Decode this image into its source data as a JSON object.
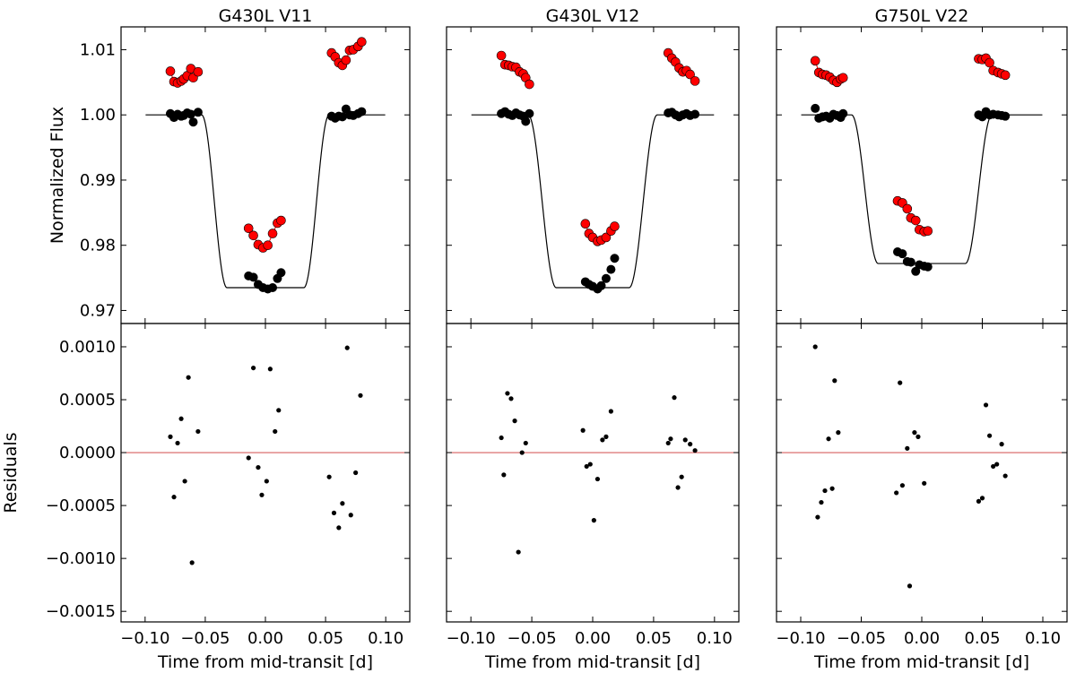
{
  "figure": {
    "shared_x_label": "Time from mid-transit [d]",
    "top_y_label": "Normalized Flux",
    "bottom_y_label": "Residuals"
  },
  "colors": {
    "raw": "#ff0000",
    "corrected": "#000000",
    "model": "#000000",
    "zero_line": "#cc3333"
  },
  "chart_data": [
    {
      "type": "scatter",
      "title": "G430L V11",
      "xlabel": "Time from mid-transit [d]",
      "ylabel_flux": "Normalized Flux",
      "ylabel_resid": "Residuals",
      "xlim": [
        -0.12,
        0.12
      ],
      "xticks": [
        "−0.10",
        "−0.05",
        "0.00",
        "0.05",
        "0.10"
      ],
      "ylim_flux": [
        0.968,
        1.0135
      ],
      "yticks_flux": [
        "0.97",
        "0.98",
        "0.99",
        "1.00",
        "1.01"
      ],
      "ylim_resid": [
        -0.0016,
        0.00122
      ],
      "yticks_resid": [
        "−0.0015",
        "−0.0010",
        "−0.0005",
        "0.0000",
        "0.0005",
        "0.0010"
      ],
      "model": {
        "t1": -0.053,
        "t2": -0.032,
        "t3": 0.032,
        "t4": 0.053,
        "depth": 0.0265
      },
      "raw": [
        [
          -0.079,
          1.0067
        ],
        [
          -0.076,
          1.0051
        ],
        [
          -0.073,
          1.0049
        ],
        [
          -0.07,
          1.0052
        ],
        [
          -0.068,
          1.0055
        ],
        [
          -0.065,
          1.006
        ],
        [
          -0.062,
          1.0071
        ],
        [
          -0.06,
          1.0057
        ],
        [
          -0.056,
          1.0066
        ],
        [
          -0.014,
          0.9826
        ],
        [
          -0.01,
          0.9815
        ],
        [
          -0.006,
          0.9801
        ],
        [
          -0.002,
          0.9796
        ],
        [
          0.002,
          0.98
        ],
        [
          0.006,
          0.9818
        ],
        [
          0.01,
          0.9834
        ],
        [
          0.013,
          0.9838
        ],
        [
          0.055,
          1.0095
        ],
        [
          0.058,
          1.0089
        ],
        [
          0.061,
          1.008
        ],
        [
          0.064,
          1.0076
        ],
        [
          0.067,
          1.0084
        ],
        [
          0.07,
          1.0099
        ],
        [
          0.073,
          1.01
        ],
        [
          0.077,
          1.0105
        ],
        [
          0.08,
          1.0112
        ]
      ],
      "corrected": [
        [
          -0.079,
          1.0002
        ],
        [
          -0.076,
          0.9996
        ],
        [
          -0.073,
          1.0001
        ],
        [
          -0.07,
          0.9998
        ],
        [
          -0.068,
          0.9999
        ],
        [
          -0.065,
          1.0003
        ],
        [
          -0.062,
          1.0001
        ],
        [
          -0.06,
          0.9989
        ],
        [
          -0.056,
          1.0004
        ],
        [
          -0.014,
          0.9753
        ],
        [
          -0.01,
          0.9751
        ],
        [
          -0.006,
          0.974
        ],
        [
          -0.002,
          0.9735
        ],
        [
          0.002,
          0.9733
        ],
        [
          0.006,
          0.9735
        ],
        [
          0.01,
          0.9749
        ],
        [
          0.013,
          0.9758
        ],
        [
          0.055,
          0.9998
        ],
        [
          0.058,
          0.9995
        ],
        [
          0.061,
          0.9998
        ],
        [
          0.064,
          0.9997
        ],
        [
          0.067,
          1.0009
        ],
        [
          0.07,
          1.0
        ],
        [
          0.073,
          0.9999
        ],
        [
          0.077,
          1.0002
        ],
        [
          0.08,
          1.0005
        ]
      ],
      "residuals": [
        [
          -0.079,
          0.00015
        ],
        [
          -0.076,
          -0.00042
        ],
        [
          -0.073,
          9e-05
        ],
        [
          -0.07,
          0.00032
        ],
        [
          -0.067,
          -0.00027
        ],
        [
          -0.064,
          0.00071
        ],
        [
          -0.061,
          -0.00104
        ],
        [
          -0.056,
          0.0002
        ],
        [
          -0.014,
          -5e-05
        ],
        [
          -0.01,
          0.0008
        ],
        [
          -0.006,
          -0.00014
        ],
        [
          -0.003,
          -0.0004
        ],
        [
          0.001,
          -0.00027
        ],
        [
          0.004,
          0.00079
        ],
        [
          0.008,
          0.0002
        ],
        [
          0.011,
          0.0004
        ],
        [
          0.053,
          -0.00023
        ],
        [
          0.057,
          -0.00057
        ],
        [
          0.061,
          -0.00071
        ],
        [
          0.064,
          -0.00048
        ],
        [
          0.068,
          0.00099
        ],
        [
          0.071,
          -0.00059
        ],
        [
          0.075,
          -0.00019
        ],
        [
          0.079,
          0.00054
        ]
      ]
    },
    {
      "type": "scatter",
      "title": "G430L V12",
      "xlabel": "Time from mid-transit [d]",
      "ylabel_flux": "",
      "ylabel_resid": "",
      "xlim": [
        -0.12,
        0.12
      ],
      "xticks": [
        "−0.10",
        "−0.05",
        "0.00",
        "0.05",
        "0.10"
      ],
      "ylim_flux": [
        0.968,
        1.0135
      ],
      "yticks_flux": [],
      "ylim_resid": [
        -0.0016,
        0.00122
      ],
      "yticks_resid": [],
      "model": {
        "t1": -0.053,
        "t2": -0.03,
        "t3": 0.03,
        "t4": 0.053,
        "depth": 0.0265
      },
      "raw": [
        [
          -0.075,
          1.0091
        ],
        [
          -0.072,
          1.0077
        ],
        [
          -0.069,
          1.0076
        ],
        [
          -0.066,
          1.0074
        ],
        [
          -0.063,
          1.0073
        ],
        [
          -0.06,
          1.0066
        ],
        [
          -0.057,
          1.0063
        ],
        [
          -0.055,
          1.0057
        ],
        [
          -0.052,
          1.0047
        ],
        [
          -0.006,
          0.9833
        ],
        [
          -0.003,
          0.9818
        ],
        [
          0.0,
          0.9812
        ],
        [
          0.004,
          0.9806
        ],
        [
          0.007,
          0.9808
        ],
        [
          0.011,
          0.9812
        ],
        [
          0.015,
          0.9822
        ],
        [
          0.018,
          0.9829
        ],
        [
          0.062,
          1.0095
        ],
        [
          0.065,
          1.0087
        ],
        [
          0.068,
          1.0081
        ],
        [
          0.071,
          1.0072
        ],
        [
          0.074,
          1.0066
        ],
        [
          0.077,
          1.0068
        ],
        [
          0.08,
          1.0062
        ],
        [
          0.084,
          1.0052
        ]
      ],
      "corrected": [
        [
          -0.075,
          1.0002
        ],
        [
          -0.072,
          1.0005
        ],
        [
          -0.069,
          1.0001
        ],
        [
          -0.066,
          0.9999
        ],
        [
          -0.063,
          1.0003
        ],
        [
          -0.06,
          1.0
        ],
        [
          -0.057,
          0.9998
        ],
        [
          -0.055,
          0.999
        ],
        [
          -0.052,
          1.0002
        ],
        [
          -0.006,
          0.9744
        ],
        [
          -0.003,
          0.974
        ],
        [
          0.0,
          0.9737
        ],
        [
          0.004,
          0.9733
        ],
        [
          0.007,
          0.9738
        ],
        [
          0.011,
          0.9749
        ],
        [
          0.015,
          0.9763
        ],
        [
          0.018,
          0.978
        ],
        [
          0.062,
          1.0003
        ],
        [
          0.065,
          1.0004
        ],
        [
          0.068,
          1.0
        ],
        [
          0.071,
          0.9997
        ],
        [
          0.074,
          1.0
        ],
        [
          0.077,
          1.0002
        ],
        [
          0.08,
          0.9999
        ],
        [
          0.084,
          1.0001
        ]
      ],
      "residuals": [
        [
          -0.075,
          0.00014
        ],
        [
          -0.073,
          -0.00021
        ],
        [
          -0.07,
          0.00056
        ],
        [
          -0.067,
          0.00051
        ],
        [
          -0.064,
          0.0003
        ],
        [
          -0.061,
          -0.00094
        ],
        [
          -0.058,
          0.0
        ],
        [
          -0.055,
          9e-05
        ],
        [
          -0.008,
          0.00021
        ],
        [
          -0.005,
          -0.00013
        ],
        [
          -0.002,
          -0.00011
        ],
        [
          0.001,
          -0.00064
        ],
        [
          0.004,
          -0.00025
        ],
        [
          0.008,
          0.00012
        ],
        [
          0.011,
          0.00015
        ],
        [
          0.015,
          0.00039
        ],
        [
          0.062,
          9e-05
        ],
        [
          0.064,
          0.00013
        ],
        [
          0.067,
          0.00052
        ],
        [
          0.07,
          -0.00033
        ],
        [
          0.073,
          -0.00023
        ],
        [
          0.076,
          0.00012
        ],
        [
          0.08,
          8e-05
        ],
        [
          0.084,
          2e-05
        ]
      ]
    },
    {
      "type": "scatter",
      "title": "G750L V22",
      "xlabel": "Time from mid-transit [d]",
      "ylabel_flux": "",
      "ylabel_resid": "",
      "xlim": [
        -0.12,
        0.12
      ],
      "xticks": [
        "−0.10",
        "−0.05",
        "0.00",
        "0.05",
        "0.10"
      ],
      "ylim_flux": [
        0.968,
        1.0135
      ],
      "yticks_flux": [],
      "ylim_resid": [
        -0.0016,
        0.00122
      ],
      "yticks_resid": [],
      "model": {
        "t1": -0.058,
        "t2": -0.036,
        "t3": 0.036,
        "t4": 0.058,
        "depth": 0.0228
      },
      "raw": [
        [
          -0.088,
          1.0083
        ],
        [
          -0.085,
          1.0065
        ],
        [
          -0.082,
          1.0062
        ],
        [
          -0.079,
          1.0061
        ],
        [
          -0.076,
          1.0058
        ],
        [
          -0.073,
          1.0053
        ],
        [
          -0.07,
          1.005
        ],
        [
          -0.067,
          1.0055
        ],
        [
          -0.065,
          1.0057
        ],
        [
          -0.02,
          0.9868
        ],
        [
          -0.016,
          0.9865
        ],
        [
          -0.012,
          0.9856
        ],
        [
          -0.009,
          0.9842
        ],
        [
          -0.005,
          0.9838
        ],
        [
          -0.002,
          0.9824
        ],
        [
          0.002,
          0.9821
        ],
        [
          0.005,
          0.9822
        ],
        [
          0.047,
          1.0086
        ],
        [
          0.05,
          1.0085
        ],
        [
          0.053,
          1.0087
        ],
        [
          0.056,
          1.008
        ],
        [
          0.059,
          1.0068
        ],
        [
          0.063,
          1.0065
        ],
        [
          0.066,
          1.0063
        ],
        [
          0.069,
          1.0061
        ]
      ],
      "corrected": [
        [
          -0.088,
          1.001
        ],
        [
          -0.085,
          0.9995
        ],
        [
          -0.082,
          0.9997
        ],
        [
          -0.079,
          0.9998
        ],
        [
          -0.076,
          0.9995
        ],
        [
          -0.073,
          1.0001
        ],
        [
          -0.07,
          0.9999
        ],
        [
          -0.067,
          0.9996
        ],
        [
          -0.065,
          1.0002
        ],
        [
          -0.02,
          0.979
        ],
        [
          -0.016,
          0.9787
        ],
        [
          -0.012,
          0.9775
        ],
        [
          -0.009,
          0.9774
        ],
        [
          -0.005,
          0.976
        ],
        [
          -0.002,
          0.977
        ],
        [
          0.002,
          0.9768
        ],
        [
          0.005,
          0.9767
        ],
        [
          0.047,
          1.0
        ],
        [
          0.05,
          0.9997
        ],
        [
          0.053,
          1.0005
        ],
        [
          0.056,
          1.0
        ],
        [
          0.059,
          1.0001
        ],
        [
          0.063,
          1.0
        ],
        [
          0.066,
          0.9999
        ],
        [
          0.069,
          0.9998
        ]
      ],
      "residuals": [
        [
          -0.088,
          0.001
        ],
        [
          -0.086,
          -0.00061
        ],
        [
          -0.083,
          -0.00047
        ],
        [
          -0.08,
          -0.00036
        ],
        [
          -0.077,
          0.00013
        ],
        [
          -0.074,
          -0.00034
        ],
        [
          -0.072,
          0.00068
        ],
        [
          -0.069,
          0.00019
        ],
        [
          -0.021,
          -0.00038
        ],
        [
          -0.018,
          0.00066
        ],
        [
          -0.016,
          -0.00031
        ],
        [
          -0.012,
          4e-05
        ],
        [
          -0.01,
          -0.00126
        ],
        [
          -0.006,
          0.00019
        ],
        [
          -0.003,
          0.00015
        ],
        [
          0.002,
          -0.00029
        ],
        [
          0.047,
          -0.00046
        ],
        [
          0.05,
          -0.00043
        ],
        [
          0.053,
          0.00045
        ],
        [
          0.056,
          0.00016
        ],
        [
          0.059,
          -0.00013
        ],
        [
          0.062,
          -0.00011
        ],
        [
          0.066,
          8e-05
        ],
        [
          0.069,
          -0.00022
        ]
      ]
    }
  ]
}
